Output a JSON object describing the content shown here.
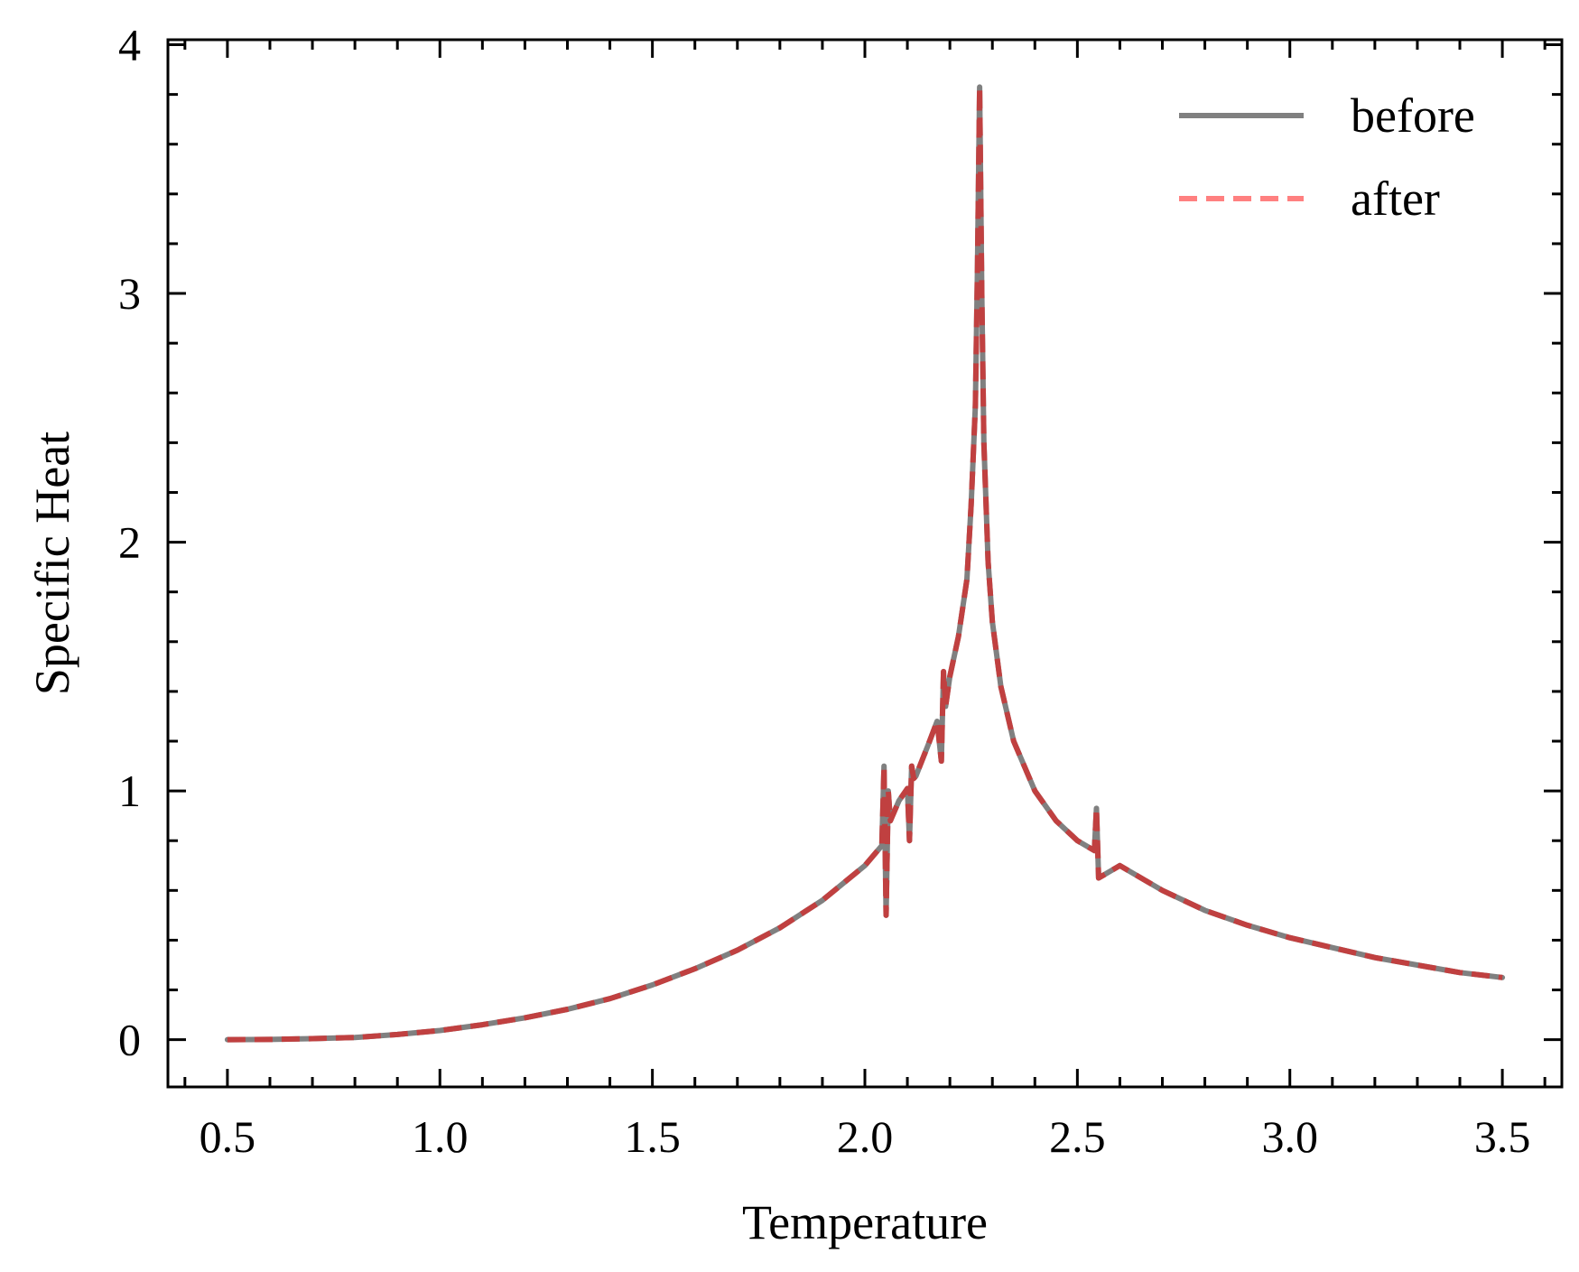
{
  "chart_data": {
    "type": "line",
    "title": "",
    "xlabel": "Temperature",
    "ylabel": "Specific Heat",
    "xlim": [
      0.36,
      3.64
    ],
    "ylim": [
      -0.19,
      4.02
    ],
    "xticks": [
      0.5,
      1.0,
      1.5,
      2.0,
      2.5,
      3.0,
      3.5
    ],
    "xtick_labels": [
      "0.5",
      "1.0",
      "1.5",
      "2.0",
      "2.5",
      "3.0",
      "3.5"
    ],
    "yticks": [
      0,
      1,
      2,
      3,
      4
    ],
    "ytick_labels": [
      "0",
      "1",
      "2",
      "3",
      "4"
    ],
    "grid": false,
    "legend_position": "top-right",
    "series": [
      {
        "name": "before",
        "color": "#808080",
        "style": "solid",
        "x": [
          0.5,
          0.6,
          0.7,
          0.8,
          0.9,
          1.0,
          1.1,
          1.2,
          1.3,
          1.4,
          1.5,
          1.6,
          1.7,
          1.8,
          1.9,
          2.0,
          2.04,
          2.045,
          2.05,
          2.055,
          2.06,
          2.08,
          2.1,
          2.105,
          2.11,
          2.115,
          2.12,
          2.15,
          2.17,
          2.18,
          2.185,
          2.19,
          2.2,
          2.22,
          2.24,
          2.25,
          2.26,
          2.265,
          2.27,
          2.275,
          2.28,
          2.29,
          2.3,
          2.32,
          2.35,
          2.4,
          2.45,
          2.5,
          2.54,
          2.545,
          2.55,
          2.6,
          2.7,
          2.8,
          2.9,
          3.0,
          3.1,
          3.2,
          3.3,
          3.4,
          3.5
        ],
        "values": [
          0.0,
          0.001,
          0.004,
          0.009,
          0.021,
          0.037,
          0.06,
          0.088,
          0.122,
          0.165,
          0.22,
          0.285,
          0.36,
          0.45,
          0.56,
          0.7,
          0.78,
          1.1,
          0.5,
          1.0,
          0.88,
          0.96,
          1.01,
          0.8,
          1.1,
          1.05,
          1.06,
          1.19,
          1.28,
          1.12,
          1.48,
          1.34,
          1.46,
          1.62,
          1.85,
          2.15,
          2.55,
          3.1,
          3.83,
          3.0,
          2.4,
          1.92,
          1.68,
          1.42,
          1.2,
          1.0,
          0.88,
          0.8,
          0.76,
          0.93,
          0.65,
          0.7,
          0.6,
          0.52,
          0.46,
          0.41,
          0.37,
          0.33,
          0.3,
          0.27,
          0.25
        ]
      },
      {
        "name": "after",
        "color": "#ff8080",
        "overlay_color": "#c04040",
        "style": "dashed",
        "x": [
          0.5,
          0.6,
          0.7,
          0.8,
          0.9,
          1.0,
          1.1,
          1.2,
          1.3,
          1.4,
          1.5,
          1.6,
          1.7,
          1.8,
          1.9,
          2.0,
          2.04,
          2.045,
          2.05,
          2.055,
          2.06,
          2.08,
          2.1,
          2.105,
          2.11,
          2.115,
          2.12,
          2.15,
          2.17,
          2.18,
          2.185,
          2.19,
          2.2,
          2.22,
          2.24,
          2.25,
          2.26,
          2.265,
          2.27,
          2.275,
          2.28,
          2.29,
          2.3,
          2.32,
          2.35,
          2.4,
          2.45,
          2.5,
          2.54,
          2.545,
          2.55,
          2.6,
          2.7,
          2.8,
          2.9,
          3.0,
          3.1,
          3.2,
          3.3,
          3.4,
          3.5
        ],
        "values": [
          0.0,
          0.001,
          0.004,
          0.009,
          0.021,
          0.037,
          0.06,
          0.088,
          0.122,
          0.165,
          0.22,
          0.285,
          0.36,
          0.45,
          0.56,
          0.7,
          0.78,
          1.1,
          0.5,
          1.0,
          0.88,
          0.96,
          1.01,
          0.8,
          1.1,
          1.05,
          1.06,
          1.19,
          1.28,
          1.12,
          1.48,
          1.34,
          1.46,
          1.62,
          1.85,
          2.15,
          2.55,
          3.1,
          3.83,
          3.0,
          2.4,
          1.92,
          1.68,
          1.42,
          1.2,
          1.0,
          0.88,
          0.8,
          0.76,
          0.93,
          0.65,
          0.7,
          0.6,
          0.52,
          0.46,
          0.41,
          0.37,
          0.33,
          0.3,
          0.27,
          0.25
        ]
      }
    ]
  }
}
